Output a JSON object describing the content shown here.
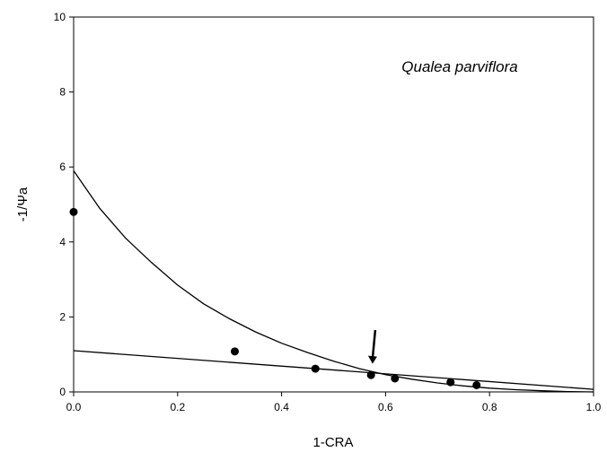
{
  "chart_data": {
    "type": "scatter",
    "title": "",
    "annotation": "Qualea parviflora",
    "xlabel": "1-CRA",
    "ylabel": "-1/Ψa",
    "xlim": [
      0.0,
      1.0
    ],
    "ylim": [
      0,
      10
    ],
    "xticks": [
      "0.0",
      "0.2",
      "0.4",
      "0.6",
      "0.8",
      "1.0"
    ],
    "yticks": [
      "0",
      "2",
      "4",
      "6",
      "8",
      "10"
    ],
    "grid": false,
    "legend": "none",
    "colors": {
      "marker": "#000000",
      "line": "#000000"
    },
    "series": [
      {
        "type": "scatter",
        "x": [
          0.0,
          0.31,
          0.465,
          0.572,
          0.618,
          0.725,
          0.775
        ],
        "y": [
          4.8,
          1.08,
          0.62,
          0.45,
          0.36,
          0.26,
          0.18
        ]
      },
      {
        "type": "line",
        "x": [
          0.0,
          0.05,
          0.1,
          0.15,
          0.2,
          0.25,
          0.3,
          0.35,
          0.4,
          0.45,
          0.5,
          0.55,
          0.6,
          0.65,
          0.7,
          0.75,
          0.8,
          0.85,
          0.9,
          0.95,
          1.0
        ],
        "y": [
          5.9,
          4.9,
          4.1,
          3.45,
          2.85,
          2.35,
          1.95,
          1.6,
          1.3,
          1.05,
          0.82,
          0.62,
          0.46,
          0.34,
          0.24,
          0.16,
          0.1,
          0.06,
          0.03,
          0.01,
          0.0
        ]
      },
      {
        "type": "line",
        "x": [
          0.0,
          1.0
        ],
        "y": [
          1.1,
          0.07
        ]
      }
    ],
    "arrow": {
      "x": 0.575,
      "y_from": 1.65,
      "y_to": 0.75
    }
  }
}
